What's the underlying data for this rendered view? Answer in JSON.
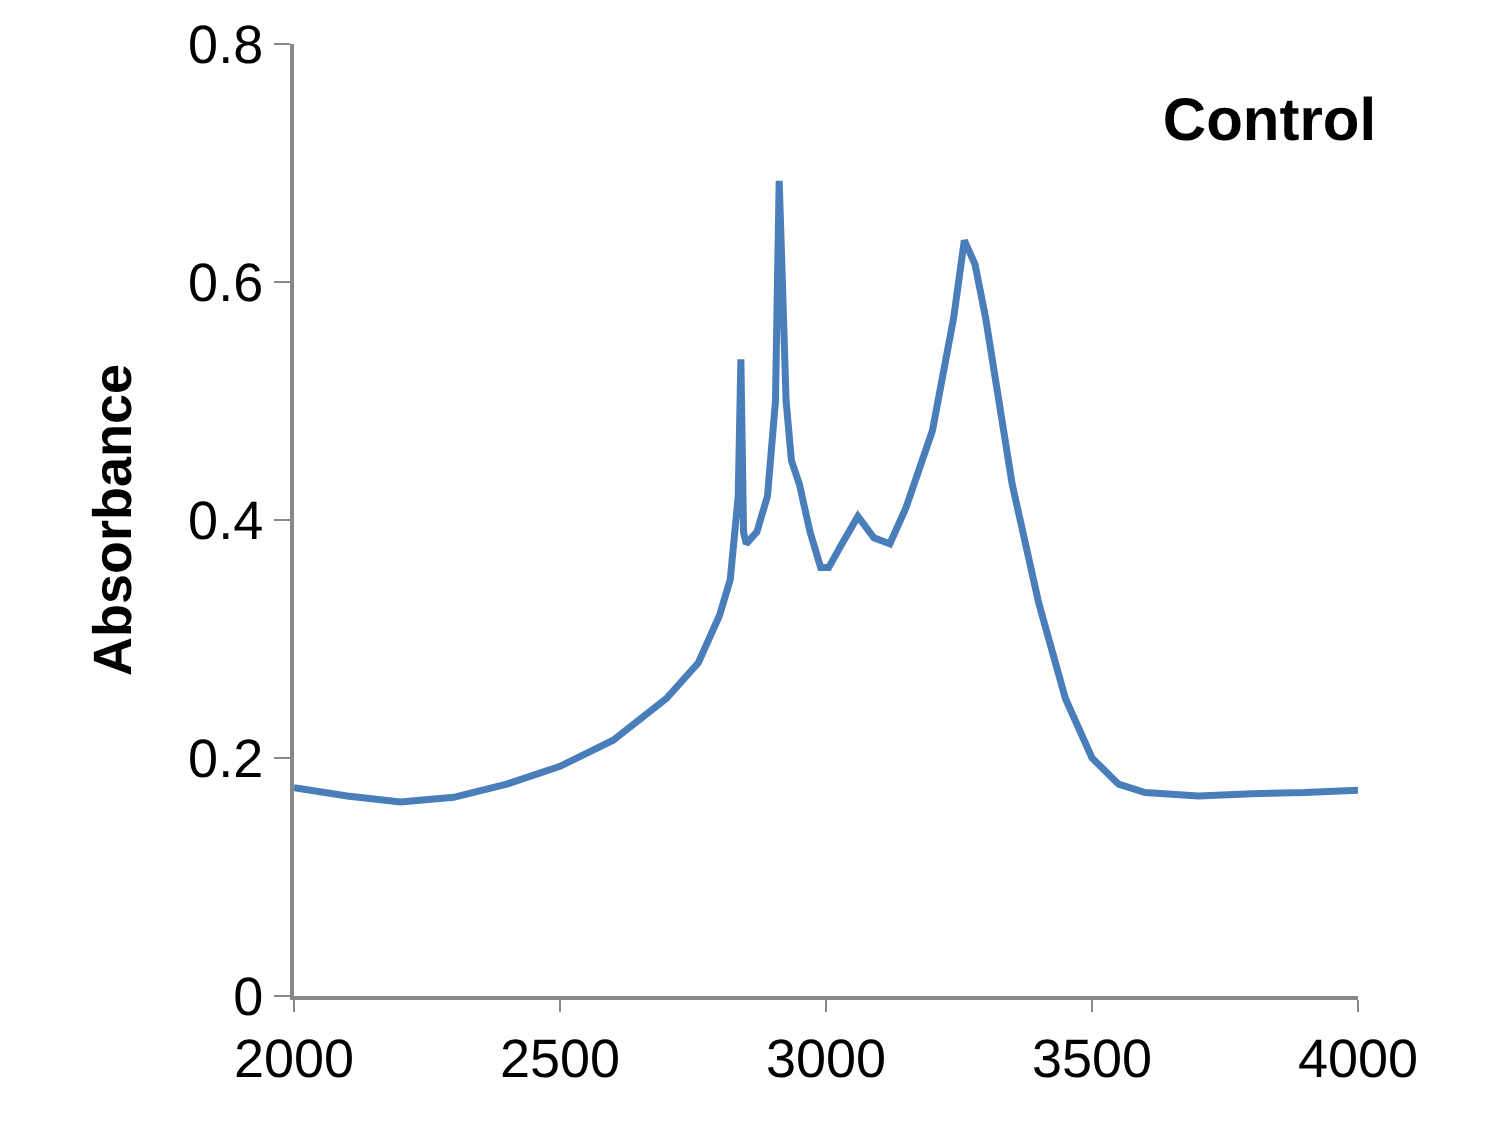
{
  "chart_data": {
    "type": "line",
    "title": "Control",
    "ylabel": "Absorbance",
    "x": [
      2000,
      2100,
      2200,
      2300,
      2400,
      2500,
      2600,
      2700,
      2760,
      2800,
      2820,
      2835,
      2840,
      2845,
      2850,
      2870,
      2890,
      2905,
      2912,
      2918,
      2925,
      2935,
      2950,
      2970,
      2990,
      3005,
      3030,
      3060,
      3090,
      3120,
      3150,
      3200,
      3240,
      3260,
      3280,
      3300,
      3350,
      3400,
      3450,
      3500,
      3550,
      3600,
      3700,
      3800,
      3900,
      4000
    ],
    "series": [
      {
        "color": "#4a7ebb",
        "values": [
          0.175,
          0.168,
          0.163,
          0.167,
          0.178,
          0.193,
          0.215,
          0.25,
          0.28,
          0.32,
          0.35,
          0.42,
          0.535,
          0.39,
          0.38,
          0.39,
          0.42,
          0.5,
          0.685,
          0.6,
          0.5,
          0.45,
          0.43,
          0.39,
          0.36,
          0.36,
          0.38,
          0.403,
          0.385,
          0.38,
          0.41,
          0.475,
          0.57,
          0.635,
          0.615,
          0.57,
          0.43,
          0.33,
          0.25,
          0.2,
          0.178,
          0.171,
          0.168,
          0.17,
          0.171,
          0.173
        ]
      }
    ],
    "xlim": [
      2000,
      4000
    ],
    "xticks": [
      2000,
      2500,
      3000,
      3500,
      4000
    ],
    "ylim": [
      0,
      0.8
    ],
    "yticks": [
      0,
      0.2,
      0.4,
      0.6,
      0.8
    ],
    "grid": false,
    "marker": "none",
    "line_style": "solid"
  }
}
